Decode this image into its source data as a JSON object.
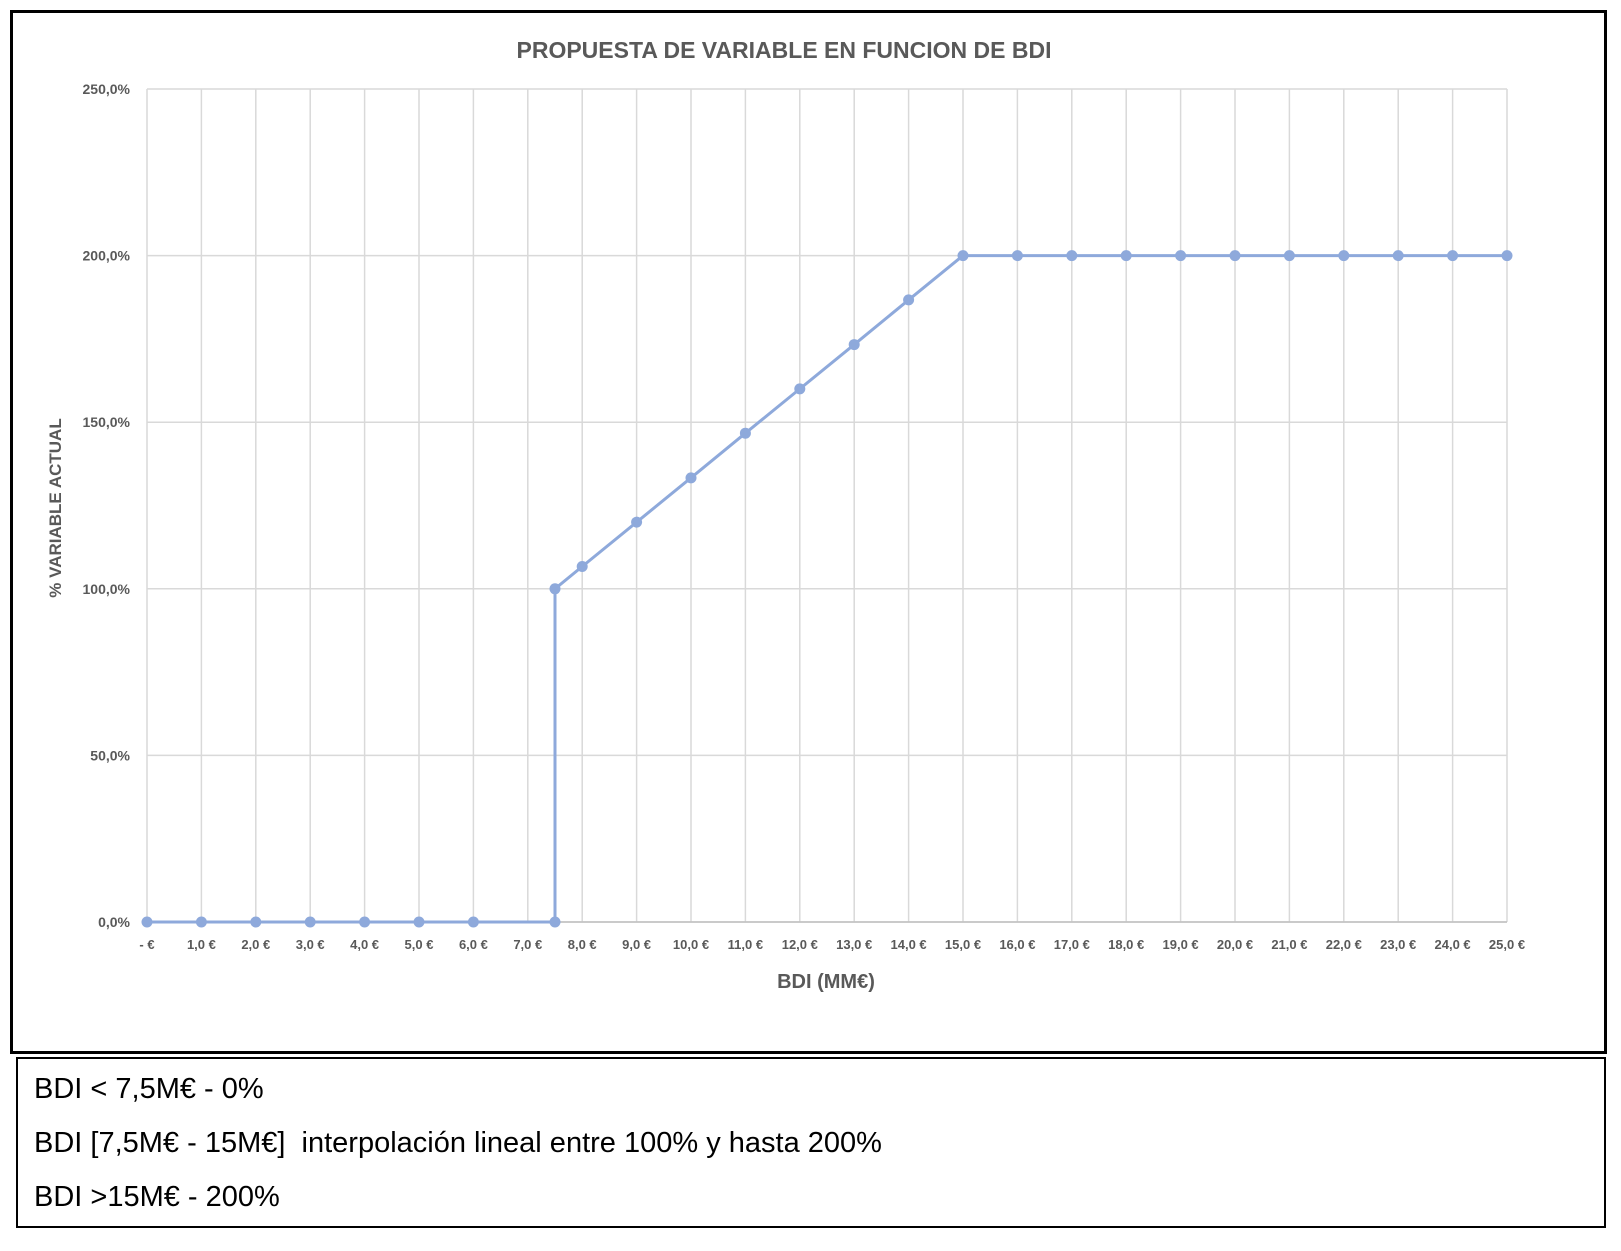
{
  "chart_data": {
    "type": "line",
    "title": "PROPUESTA DE VARIABLE EN FUNCION DE BDI",
    "xlabel": "BDI (MM€)",
    "ylabel": "% VARIABLE ACTUAL",
    "xlim": [
      0,
      25
    ],
    "ylim": [
      0,
      250
    ],
    "grid": true,
    "line_color": "#8EA9DB",
    "x_tick_values": [
      0,
      1,
      2,
      3,
      4,
      5,
      6,
      7,
      8,
      9,
      10,
      11,
      12,
      13,
      14,
      15,
      16,
      17,
      18,
      19,
      20,
      21,
      22,
      23,
      24,
      25
    ],
    "x_tick_labels": [
      "-  €",
      "1,0 €",
      "2,0 €",
      "3,0 €",
      "4,0 €",
      "5,0 €",
      "6,0 €",
      "7,0 €",
      "8,0 €",
      "9,0 €",
      "10,0 €",
      "11,0 €",
      "12,0 €",
      "13,0 €",
      "14,0 €",
      "15,0 €",
      "16,0 €",
      "17,0 €",
      "18,0 €",
      "19,0 €",
      "20,0 €",
      "21,0 €",
      "22,0 €",
      "23,0 €",
      "24,0 €",
      "25,0 €"
    ],
    "y_tick_values": [
      0,
      50,
      100,
      150,
      200,
      250
    ],
    "y_tick_labels": [
      "0,0%",
      "50,0%",
      "100,0%",
      "150,0%",
      "200,0%",
      "250,0%"
    ],
    "series": [
      {
        "x": [
          0,
          1,
          2,
          3,
          4,
          5,
          6,
          7.5,
          7.5,
          8,
          9,
          10,
          11,
          12,
          13,
          14,
          15,
          16,
          17,
          18,
          19,
          20,
          21,
          22,
          23,
          24,
          25
        ],
        "y": [
          0,
          0,
          0,
          0,
          0,
          0,
          0,
          0,
          100,
          106.7,
          120,
          133.3,
          146.7,
          160,
          173.3,
          186.7,
          200,
          200,
          200,
          200,
          200,
          200,
          200,
          200,
          200,
          200,
          200
        ]
      }
    ]
  },
  "notes": {
    "line1": "BDI < 7,5M€ - 0%",
    "line2": "BDI [7,5M€ - 15M€]  interpolación lineal entre 100% y hasta 200%",
    "line3": "BDI >15M€ - 200%"
  }
}
